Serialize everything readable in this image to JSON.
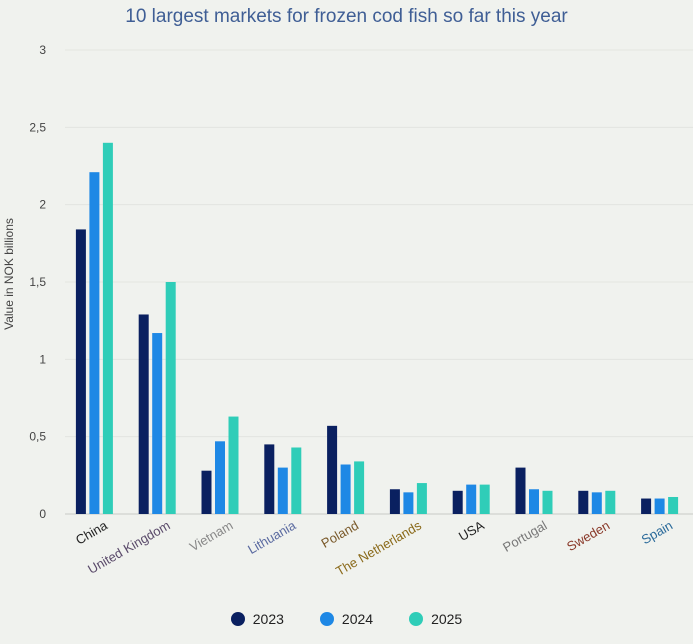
{
  "chart_data": {
    "type": "bar",
    "title": "10 largest markets for frozen cod fish so far this year",
    "ylabel": "Value in NOK billions",
    "ylim": [
      0,
      3
    ],
    "yticks": [
      "0",
      "0,5",
      "1",
      "1,5",
      "2",
      "2,5",
      "3"
    ],
    "grid": true,
    "legend_position": "bottom",
    "categories": [
      "China",
      "United Kingdom",
      "Vietnam",
      "Lithuania",
      "Poland",
      "The Netherlands",
      "USA",
      "Portugal",
      "Sweden",
      "Spain"
    ],
    "category_colors": [
      "#222222",
      "#5a4a6a",
      "#888888",
      "#5a6aa0",
      "#7a5a2a",
      "#8a6a1a",
      "#222222",
      "#777777",
      "#8a3a2a",
      "#2a6a9a"
    ],
    "series": [
      {
        "name": "2023",
        "color": "#0a2060",
        "values": [
          1.84,
          1.29,
          0.28,
          0.45,
          0.57,
          0.16,
          0.15,
          0.3,
          0.15,
          0.1
        ]
      },
      {
        "name": "2024",
        "color": "#1e88e5",
        "values": [
          2.21,
          1.17,
          0.47,
          0.3,
          0.32,
          0.14,
          0.19,
          0.16,
          0.14,
          0.1
        ]
      },
      {
        "name": "2025",
        "color": "#2fcdb8",
        "values": [
          2.4,
          1.5,
          0.63,
          0.43,
          0.34,
          0.2,
          0.19,
          0.15,
          0.15,
          0.11
        ]
      }
    ]
  }
}
